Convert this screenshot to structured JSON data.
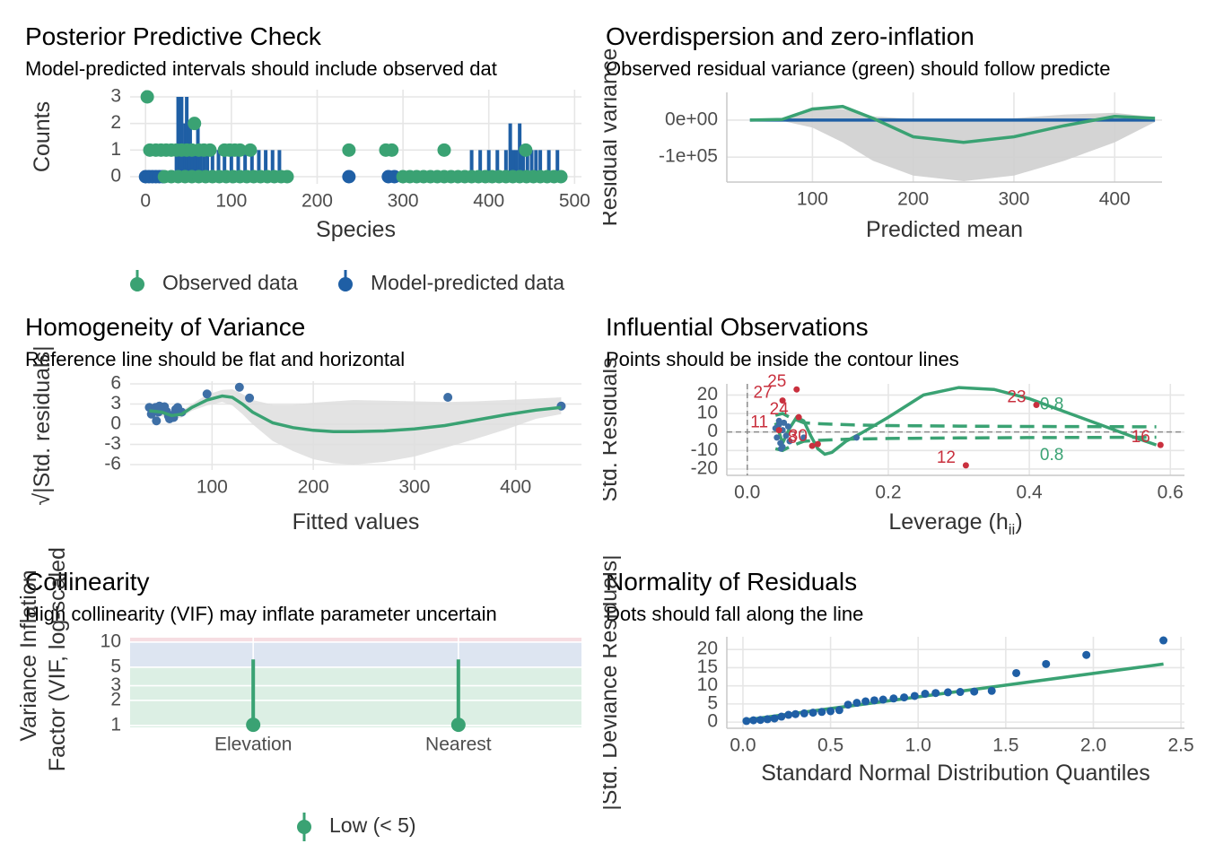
{
  "chart_data": [
    {
      "type": "ppc",
      "title": "Posterior Predictive Check",
      "subtitle": "Model-predicted intervals should include observed dat",
      "xlabel": "Species",
      "ylabel": "Counts",
      "xlim": [
        -18,
        508
      ],
      "ylim": [
        -0.27,
        3.27
      ],
      "xticks": [
        0,
        100,
        200,
        300,
        400,
        500
      ],
      "yticks": [
        0,
        1,
        2,
        3
      ],
      "grid": true,
      "series": [
        {
          "name": "Model-predicted data",
          "color": "#1f5fa5",
          "x": [
            0,
            4,
            8,
            12,
            16,
            20,
            237,
            283,
            290,
            36,
            38,
            40,
            42,
            44,
            46,
            48,
            50,
            52,
            55,
            58,
            61,
            64,
            68,
            72,
            78,
            85,
            92,
            100,
            108,
            116,
            124,
            132,
            140,
            148,
            156,
            380,
            390,
            400,
            410,
            420,
            425,
            428,
            432,
            436,
            440,
            445,
            450,
            455,
            460,
            470,
            480
          ],
          "values": [
            0,
            0,
            0,
            0,
            0,
            0,
            0,
            0,
            0,
            1,
            3,
            2,
            3,
            1,
            2,
            3,
            1,
            2,
            1,
            1,
            2,
            1,
            1,
            1,
            1,
            1,
            1,
            1,
            1,
            1,
            1,
            1,
            1,
            1,
            1,
            1,
            1,
            1,
            1,
            1,
            2,
            1,
            1,
            2,
            1,
            1,
            1,
            1,
            1,
            1,
            1
          ]
        },
        {
          "name": "Observed data",
          "color": "#3aa273",
          "x": [
            2,
            57,
            5,
            12,
            18,
            24,
            30,
            36,
            42,
            48,
            54,
            62,
            68,
            75,
            92,
            98,
            104,
            110,
            122,
            237,
            280,
            287,
            348,
            443,
            22,
            30,
            38,
            46,
            54,
            62,
            70,
            78,
            86,
            94,
            102,
            110,
            118,
            126,
            134,
            142,
            150,
            158,
            165,
            300,
            308,
            316,
            324,
            332,
            340,
            348,
            356,
            364,
            372,
            380,
            388,
            396,
            404,
            412,
            420,
            428,
            436,
            444,
            452,
            460,
            468,
            476,
            484
          ],
          "values": [
            3,
            2,
            1,
            1,
            1,
            1,
            1,
            1,
            1,
            1,
            1,
            1,
            1,
            1,
            1,
            1,
            1,
            1,
            1,
            1,
            1,
            1,
            1,
            1,
            0,
            0,
            0,
            0,
            0,
            0,
            0,
            0,
            0,
            0,
            0,
            0,
            0,
            0,
            0,
            0,
            0,
            0,
            0,
            0,
            0,
            0,
            0,
            0,
            0,
            0,
            0,
            0,
            0,
            0,
            0,
            0,
            0,
            0,
            0,
            0,
            0,
            0,
            0,
            0,
            0,
            0,
            0
          ]
        }
      ]
    },
    {
      "type": "overdispersion",
      "title": "Overdispersion and zero-inflation",
      "subtitle": "Observed residual variance (green) should follow predicte",
      "xlabel": "Predicted mean",
      "ylabel": "Residual variance",
      "xlim": [
        15,
        447
      ],
      "ylim": [
        -167500,
        75000
      ],
      "xticks": [
        100,
        200,
        300,
        400
      ],
      "yticks": [
        {
          "value": 0,
          "label": "0e+00"
        },
        {
          "value": -100000,
          "label": "-1e+05"
        }
      ],
      "grid": true,
      "x": [
        38,
        70,
        100,
        130,
        160,
        200,
        250,
        300,
        350,
        400,
        440
      ],
      "band": {
        "color": "#cfcfcf",
        "low": [
          0,
          -2000,
          -20000,
          -60000,
          -110000,
          -150000,
          -165000,
          -150000,
          -110000,
          -60000,
          -5000
        ],
        "high": [
          0,
          3000,
          35000,
          30000,
          10000,
          3000,
          3000,
          5000,
          15000,
          20000,
          8000
        ]
      },
      "series": [
        {
          "color": "#1f5fa5",
          "values": [
            0,
            0,
            0,
            0,
            0,
            0,
            0,
            0,
            0,
            0,
            0
          ]
        },
        {
          "color": "#3aa273",
          "values": [
            0,
            2000,
            30000,
            37000,
            5000,
            -45000,
            -60000,
            -45000,
            -15000,
            10000,
            5000
          ]
        }
      ]
    },
    {
      "type": "homogeneity",
      "title": "Homogeneity of Variance",
      "subtitle": "Reference line should be flat and horizontal",
      "xlabel": "Fitted values",
      "ylabel": "√|Std. residuals|",
      "xlim": [
        19,
        465
      ],
      "ylim": [
        -6.8,
        6.4
      ],
      "xticks": [
        100,
        200,
        300,
        400
      ],
      "yticks": [
        6,
        3,
        0,
        -3,
        -6
      ],
      "grid": true,
      "points": {
        "color": "#3e6fa6",
        "x": [
          38,
          40,
          42,
          44,
          45,
          47,
          48,
          50,
          52,
          53,
          55,
          57,
          58,
          60,
          62,
          64,
          66,
          70,
          95,
          127,
          137,
          333,
          445
        ],
        "values": [
          2.5,
          1.5,
          2,
          2.5,
          0.5,
          1.8,
          2.7,
          2.2,
          2.4,
          2.6,
          1.9,
          1.2,
          0.8,
          1.3,
          1,
          2.2,
          2.5,
          1.8,
          4.5,
          5.5,
          3.9,
          4,
          2.7
        ]
      },
      "smooth": {
        "color": "#3aa273",
        "x": [
          38,
          50,
          60,
          70,
          80,
          95,
          110,
          120,
          130,
          140,
          160,
          180,
          200,
          220,
          240,
          270,
          300,
          330,
          360,
          390,
          420,
          445
        ],
        "values": [
          2,
          1.8,
          1.3,
          1.5,
          2.5,
          3.6,
          4.2,
          4,
          3,
          1.8,
          0.2,
          -0.5,
          -0.9,
          -1.1,
          -1.1,
          -1,
          -0.7,
          -0.2,
          0.6,
          1.4,
          2.1,
          2.5
        ],
        "band_color": "#dedede",
        "low": [
          1,
          1.2,
          0.8,
          1,
          2,
          2.8,
          3.3,
          2.8,
          1.5,
          0,
          -2.5,
          -4,
          -5.2,
          -5.8,
          -6,
          -5.6,
          -4.8,
          -3.5,
          -2.2,
          -0.8,
          0.8,
          1.5
        ],
        "high": [
          3,
          2.4,
          1.8,
          2,
          3,
          4.4,
          5.1,
          5.2,
          4.5,
          3.6,
          2.9,
          2.9,
          3.2,
          3.4,
          3.6,
          3.5,
          3.4,
          3.3,
          3.4,
          3.6,
          3.8,
          4
        ]
      }
    },
    {
      "type": "influence",
      "title": "Influential Observations",
      "subtitle": "Points should be inside the contour lines",
      "xlabel": [
        "Leverage (h",
        "ii",
        ")"
      ],
      "ylabel": "Std. Residuals",
      "xlim": [
        -0.029,
        0.62
      ],
      "ylim": [
        -23.4,
        26
      ],
      "xticks": [
        {
          "value": 0,
          "label": "0.0"
        },
        0.2,
        0.4,
        0.6
      ],
      "yticks": [
        20,
        10,
        0,
        -10,
        -20
      ],
      "grid": true,
      "hline": 0,
      "vline": 0,
      "points": {
        "color": "#3e6fa6",
        "highlight_color": "#c9303e",
        "x": [
          0.04,
          0.042,
          0.045,
          0.047,
          0.05,
          0.05,
          0.052,
          0.055,
          0.058,
          0.06,
          0.045,
          0.048,
          0.08,
          0.155,
          0.05,
          0.07,
          0.073,
          0.045,
          0.092,
          0.1,
          0.41,
          0.31,
          0.586
        ],
        "values": [
          2,
          -3,
          4,
          -6,
          1,
          -8,
          5,
          -2,
          3,
          -5,
          6,
          -9,
          -3,
          -3,
          17,
          23,
          8,
          1,
          -7.5,
          -6.5,
          14.6,
          -18,
          -7
        ],
        "labels": [
          null,
          null,
          null,
          null,
          null,
          null,
          null,
          null,
          null,
          null,
          null,
          null,
          null,
          null,
          "27",
          "25",
          "24",
          "11",
          "8",
          "30",
          "23",
          "12",
          "16"
        ]
      },
      "smooth": {
        "color": "#3aa273",
        "x": [
          0.04,
          0.045,
          0.05,
          0.06,
          0.07,
          0.08,
          0.09,
          0.1,
          0.11,
          0.12,
          0.14,
          0.16,
          0.2,
          0.25,
          0.3,
          0.35,
          0.4,
          0.45,
          0.5,
          0.55,
          0.58
        ],
        "values": [
          5,
          0,
          -6,
          2,
          8,
          6,
          -2,
          -9,
          -12,
          -11,
          -5,
          -1,
          8,
          20,
          24,
          23,
          18,
          11,
          4,
          -3,
          -7
        ]
      },
      "contours": [
        {
          "label": "0.8",
          "color": "#3aa273",
          "x": [
            0.04,
            0.05,
            0.06,
            0.08,
            0.1,
            0.15,
            0.2,
            0.3,
            0.4,
            0.5,
            0.58
          ],
          "values": [
            9,
            10,
            8,
            5,
            4.5,
            3.8,
            3.5,
            3.2,
            3,
            2.9,
            2.8
          ]
        },
        {
          "label": "0.8",
          "color": "#3aa273",
          "x": [
            0.04,
            0.05,
            0.06,
            0.08,
            0.1,
            0.15,
            0.2,
            0.3,
            0.4,
            0.5,
            0.58
          ],
          "values": [
            -9,
            -10,
            -8,
            -5,
            -4.5,
            -3.8,
            -3.5,
            -3.2,
            -3,
            -2.9,
            -2.8
          ]
        }
      ]
    },
    {
      "type": "vif",
      "title": "Collinearity",
      "subtitle": "High collinearity (VIF) may inflate parameter uncertain",
      "ylabel": [
        "Variance Inflation",
        "Factor (VIF, log-scaled)"
      ],
      "ylog": true,
      "ylim": [
        0.95,
        11.3
      ],
      "yticks": [
        1,
        2,
        3,
        5,
        10
      ],
      "grid": true,
      "zone_breaks": [
        5,
        10
      ],
      "zone_colors": [
        "#dcefe4",
        "#dde5f1",
        "#f6dde2"
      ],
      "categories": [
        "Elevation",
        "Nearest"
      ],
      "series": [
        {
          "name": "Low (< 5)",
          "color": "#3aa273",
          "values": [
            1.02,
            1.02
          ],
          "ci_low": [
            1,
            1
          ],
          "ci_high": [
            6.2,
            6.2
          ]
        }
      ]
    },
    {
      "type": "qq",
      "title": "Normality of Residuals",
      "subtitle": "Dots should fall along the line",
      "xlabel": "Standard Normal Distribution Quantiles",
      "ylabel": "|Std. Deviance Residuals|",
      "xlim": [
        -0.092,
        2.52
      ],
      "ylim": [
        -1.7,
        23.5
      ],
      "xticks": [
        {
          "value": 0,
          "label": "0.0"
        },
        0.5,
        {
          "value": 1,
          "label": "1.0"
        },
        1.5,
        {
          "value": 2,
          "label": "2.0"
        },
        2.5
      ],
      "yticks": [
        0,
        5,
        10,
        15,
        20
      ],
      "grid": true,
      "points": {
        "color": "#1f5fa5",
        "x": [
          0.02,
          0.06,
          0.1,
          0.14,
          0.18,
          0.22,
          0.26,
          0.3,
          0.35,
          0.4,
          0.45,
          0.5,
          0.55,
          0.6,
          0.65,
          0.7,
          0.75,
          0.8,
          0.86,
          0.92,
          0.98,
          1.04,
          1.1,
          1.17,
          1.24,
          1.32,
          1.42,
          1.56,
          1.73,
          1.96,
          2.4
        ],
        "values": [
          0.3,
          0.5,
          0.6,
          0.8,
          1,
          1.5,
          2,
          2.2,
          2.4,
          2.6,
          2.8,
          3,
          3.3,
          4.8,
          5.3,
          5.7,
          6,
          6.2,
          6.5,
          6.8,
          7.2,
          7.8,
          8,
          8.2,
          8.3,
          8.4,
          8.6,
          13.5,
          16,
          18.5,
          22.5
        ]
      },
      "line": {
        "color": "#3aa273",
        "x": [
          0,
          2.4
        ],
        "values": [
          0.5,
          16
        ]
      }
    }
  ]
}
